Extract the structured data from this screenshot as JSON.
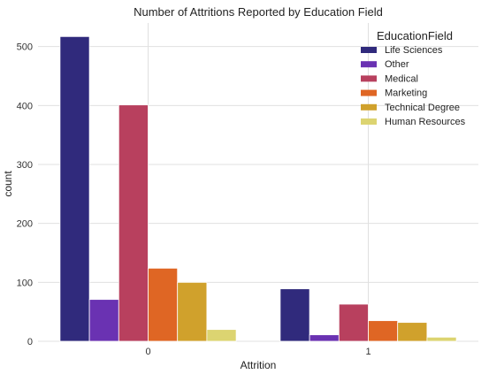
{
  "chart_data": {
    "type": "bar",
    "title": "Number of Attritions Reported by Education Field",
    "xlabel": "Attrition",
    "ylabel": "count",
    "categories": [
      "0",
      "1"
    ],
    "ylim": [
      0,
      540
    ],
    "yticks": [
      0,
      100,
      200,
      300,
      400,
      500
    ],
    "grid": true,
    "legend_title": "EducationField",
    "legend_position": "top-right",
    "series": [
      {
        "name": "Life Sciences",
        "color": "#302a7c",
        "values": [
          517,
          89
        ]
      },
      {
        "name": "Other",
        "color": "#6a32b2",
        "values": [
          71,
          11
        ]
      },
      {
        "name": "Medical",
        "color": "#b8405e",
        "values": [
          401,
          63
        ]
      },
      {
        "name": "Marketing",
        "color": "#df6624",
        "values": [
          124,
          35
        ]
      },
      {
        "name": "Technical Degree",
        "color": "#d0a12c",
        "values": [
          100,
          32
        ]
      },
      {
        "name": "Human Resources",
        "color": "#dcd471",
        "values": [
          20,
          7
        ]
      }
    ]
  }
}
